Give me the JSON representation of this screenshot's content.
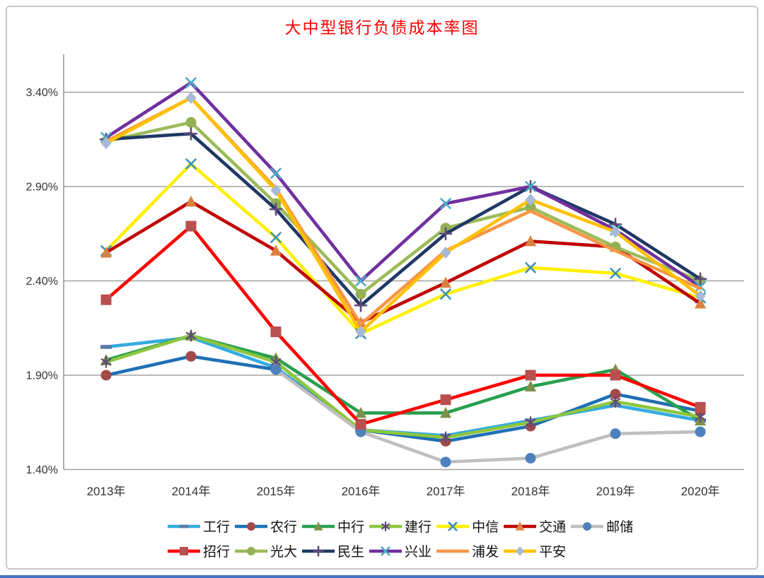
{
  "colors": {
    "title": "#ff0000",
    "grid": "#a3a3a3",
    "axis": "#8c8c8c",
    "tick_text": "#333333",
    "frame_border": "#c9c9c9",
    "bottom_divider": "#4472c4"
  },
  "chart_data": {
    "type": "line",
    "title": "大中型银行负债成本率图",
    "xlabel": "",
    "ylabel": "",
    "x": [
      "2013年",
      "2014年",
      "2015年",
      "2016年",
      "2017年",
      "2018年",
      "2019年",
      "2020年"
    ],
    "y_axis": {
      "min": 1.4,
      "max": 3.4,
      "step": 0.5,
      "tick_labels_top_down": [
        "3.40%",
        "2.90%",
        "2.40%",
        "1.90%",
        "1.40%"
      ],
      "grid": true
    },
    "legend": {
      "position": "bottom",
      "rows": [
        7,
        6
      ]
    },
    "series": [
      {
        "name": "工行",
        "line_color": "#35ace0",
        "marker": "dash",
        "marker_color": "#5b7cab",
        "values": [
          2.05,
          2.1,
          1.94,
          1.61,
          1.58,
          1.66,
          1.74,
          1.66
        ]
      },
      {
        "name": "农行",
        "line_color": "#1f6fb5",
        "marker": "circle",
        "marker_color": "#a04a4a",
        "values": [
          1.9,
          2.0,
          1.93,
          1.61,
          1.55,
          1.63,
          1.8,
          1.71
        ]
      },
      {
        "name": "中行",
        "line_color": "#27a04e",
        "marker": "triangle",
        "marker_color": "#7e9148",
        "values": [
          1.98,
          2.11,
          1.99,
          1.7,
          1.7,
          1.84,
          1.93,
          1.66
        ]
      },
      {
        "name": "建行",
        "line_color": "#8dc63f",
        "marker": "asterisk",
        "marker_color": "#5f497a",
        "values": [
          1.97,
          2.11,
          1.97,
          1.61,
          1.57,
          1.65,
          1.76,
          1.68
        ]
      },
      {
        "name": "中信",
        "line_color": "#fff000",
        "marker": "x",
        "marker_color": "#3f93b4",
        "values": [
          2.56,
          3.02,
          2.63,
          2.12,
          2.33,
          2.47,
          2.44,
          2.31
        ]
      },
      {
        "name": "交通",
        "line_color": "#c00000",
        "marker": "triangle",
        "marker_color": "#d9813e",
        "values": [
          2.55,
          2.82,
          2.56,
          2.18,
          2.39,
          2.61,
          2.58,
          2.28
        ]
      },
      {
        "name": "邮储",
        "line_color": "#bfbfbf",
        "marker": "circle",
        "marker_color": "#4f81bd",
        "values": [
          null,
          null,
          1.93,
          1.6,
          1.44,
          1.46,
          1.59,
          1.6
        ]
      },
      {
        "name": "招行",
        "line_color": "#ff0000",
        "marker": "square",
        "marker_color": "#b8504f",
        "values": [
          2.3,
          2.69,
          2.13,
          1.64,
          1.77,
          1.9,
          1.9,
          1.73
        ]
      },
      {
        "name": "光大",
        "line_color": "#9bbb59",
        "marker": "circle",
        "marker_color": "#94b054",
        "values": [
          3.14,
          3.24,
          2.81,
          2.33,
          2.68,
          2.79,
          2.58,
          2.4
        ]
      },
      {
        "name": "民生",
        "line_color": "#1f3864",
        "marker": "plus",
        "marker_color": "#604a7b",
        "values": [
          3.15,
          3.18,
          2.78,
          2.27,
          2.65,
          2.9,
          2.7,
          2.41
        ]
      },
      {
        "name": "兴业",
        "line_color": "#7030a0",
        "marker": "x",
        "marker_color": "#4bacc6",
        "values": [
          3.16,
          3.45,
          2.97,
          2.4,
          2.81,
          2.9,
          2.67,
          2.37
        ]
      },
      {
        "name": "浦发",
        "line_color": "#f79646",
        "marker": "none",
        "marker_color": "#f79646",
        "values": [
          3.14,
          3.37,
          2.89,
          2.17,
          2.56,
          2.77,
          2.56,
          2.36
        ]
      },
      {
        "name": "平安",
        "line_color": "#ffc000",
        "marker": "diamond",
        "marker_color": "#a7b9d7",
        "values": [
          3.13,
          3.37,
          2.88,
          2.13,
          2.55,
          2.83,
          2.66,
          2.32
        ]
      }
    ]
  }
}
